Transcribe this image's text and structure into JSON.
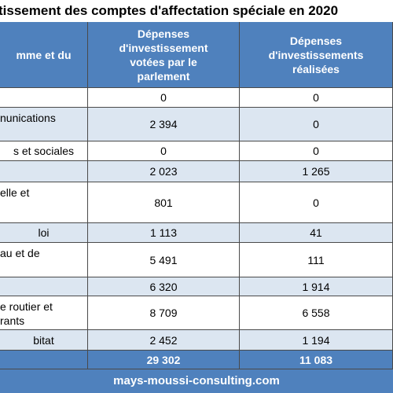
{
  "title": "tissement des comptes d'affectation spéciale en 2020",
  "table": {
    "header": [
      "mme et du",
      "Dépenses\nd'investissement\nvotées par le\nparlement",
      "Dépenses\nd'investissements\nréalisées"
    ],
    "rows": [
      [
        null,
        "0",
        "0"
      ],
      [
        "nunications",
        "2 394",
        "0"
      ],
      [
        "s et sociales",
        "0",
        "0"
      ],
      [
        null,
        "2 023",
        "1 265"
      ],
      [
        "elle et",
        "801",
        "0"
      ],
      [
        "loi",
        "1 113",
        "41"
      ],
      [
        "au et de",
        "5 491",
        "111"
      ],
      [
        null,
        "6 320",
        "1 914"
      ],
      [
        "e routier et\nrants",
        "8 709",
        "6 558"
      ],
      [
        "bitat",
        "2 452",
        "1 194"
      ]
    ],
    "total": [
      null,
      "29 302",
      "11 083"
    ]
  },
  "footer": "mays-moussi-consulting.com"
}
